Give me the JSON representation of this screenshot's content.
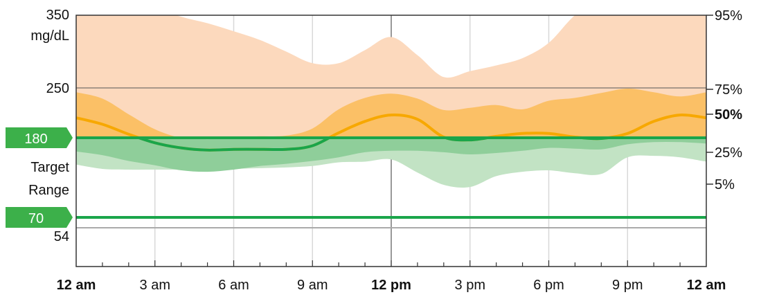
{
  "chart_data": {
    "type": "area",
    "x_unit": "hour",
    "x_ticks": [
      {
        "value": 0,
        "label": "12 am",
        "bold": true
      },
      {
        "value": 3,
        "label": "3 am",
        "bold": false
      },
      {
        "value": 6,
        "label": "6 am",
        "bold": false
      },
      {
        "value": 9,
        "label": "9 am",
        "bold": false
      },
      {
        "value": 12,
        "label": "12 pm",
        "bold": true
      },
      {
        "value": 15,
        "label": "3 pm",
        "bold": false
      },
      {
        "value": 18,
        "label": "6 pm",
        "bold": false
      },
      {
        "value": 21,
        "label": "9 pm",
        "bold": false
      },
      {
        "value": 24,
        "label": "12 am",
        "bold": true
      }
    ],
    "y_unit_label": "mg/dL",
    "ylim": [
      30,
      350
    ],
    "y_ticks": [
      {
        "value": 350,
        "label": "350"
      },
      {
        "value": 250,
        "label": "250"
      },
      {
        "value": 54,
        "label": "54"
      }
    ],
    "target_range": {
      "low": 70,
      "high": 180,
      "low_label": "70",
      "high_label": "180",
      "label_line1": "Target",
      "label_line2": "Range"
    },
    "percentile_labels": {
      "p95": "95%",
      "p75": "75%",
      "p50": "50%",
      "p25": "25%",
      "p5": "5%"
    },
    "colors": {
      "band_5_95_high": "#fcd9bd",
      "band_25_75_high": "#fbc066",
      "band_5_95_low": "#c2e3c4",
      "band_25_75_low": "#8fce9a",
      "target_fill": "#fde2ad",
      "median": "#f7a800",
      "target_line": "#1aa54a",
      "label_green": "#3cb04a"
    },
    "series": {
      "hours": [
        0,
        1,
        2,
        3,
        4,
        5,
        6,
        7,
        8,
        9,
        10,
        11,
        12,
        13,
        14,
        15,
        16,
        17,
        18,
        19,
        20,
        21,
        22,
        23,
        24
      ],
      "p5": [
        143,
        137,
        136,
        136,
        136,
        136,
        137,
        138,
        139,
        141,
        146,
        147,
        150,
        132,
        115,
        112,
        127,
        133,
        135,
        131,
        130,
        153,
        155,
        153,
        147
      ],
      "p25": [
        161,
        156,
        148,
        142,
        135,
        133,
        136,
        141,
        144,
        148,
        153,
        160,
        162,
        162,
        160,
        157,
        159,
        162,
        166,
        165,
        164,
        171,
        174,
        174,
        172
      ],
      "p50": [
        208,
        199,
        185,
        173,
        166,
        163,
        164,
        164,
        164,
        169,
        187,
        203,
        212,
        206,
        181,
        177,
        182,
        186,
        186,
        181,
        179,
        186,
        203,
        212,
        208
      ],
      "p75": [
        244,
        235,
        213,
        192,
        180,
        178,
        181,
        182,
        183,
        193,
        220,
        236,
        242,
        235,
        219,
        222,
        226,
        220,
        232,
        236,
        243,
        249,
        244,
        238,
        244
      ],
      "p95": [
        370,
        370,
        370,
        360,
        348,
        339,
        328,
        316,
        300,
        284,
        284,
        302,
        320,
        295,
        265,
        273,
        281,
        291,
        312,
        350,
        370,
        370,
        370,
        370,
        370
      ]
    }
  }
}
